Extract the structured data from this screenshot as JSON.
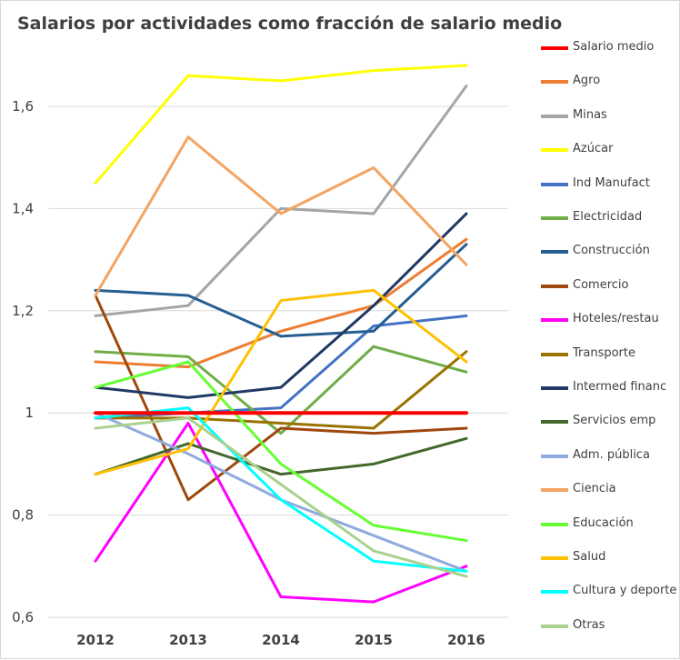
{
  "chart_data": {
    "type": "line",
    "title": "Salarios por actividades como fracción de salario medio",
    "xlabel": "",
    "ylabel": "",
    "x": [
      "2012",
      "2013",
      "2014",
      "2015",
      "2016"
    ],
    "ylim": [
      0.6,
      1.7
    ],
    "yticks": [
      0.6,
      0.8,
      1.0,
      1.2,
      1.4,
      1.6
    ],
    "ytick_labels": [
      "0,6",
      "0,8",
      "1",
      "1,2",
      "1,4",
      "1,6"
    ],
    "grid": "horizontal",
    "legend_position": "right",
    "series": [
      {
        "name": "Salario medio",
        "color": "#ff0000",
        "values": [
          1.0,
          1.0,
          1.0,
          1.0,
          1.0
        ]
      },
      {
        "name": "Agro",
        "color": "#ed7d31",
        "values": [
          1.1,
          1.09,
          1.16,
          1.21,
          1.34
        ]
      },
      {
        "name": "Minas",
        "color": "#a5a5a5",
        "values": [
          1.19,
          1.21,
          1.4,
          1.39,
          1.64
        ]
      },
      {
        "name": "Azúcar",
        "color": "#ffff00",
        "values": [
          1.45,
          1.66,
          1.65,
          1.67,
          1.68
        ]
      },
      {
        "name": "Ind Manufact",
        "color": "#4472c4",
        "values": [
          0.99,
          1.0,
          1.01,
          1.17,
          1.19
        ]
      },
      {
        "name": "Electricidad",
        "color": "#70ad47",
        "values": [
          1.12,
          1.11,
          0.96,
          1.13,
          1.08
        ]
      },
      {
        "name": "Construcción",
        "color": "#255e91",
        "values": [
          1.24,
          1.23,
          1.15,
          1.16,
          1.33
        ]
      },
      {
        "name": "Comercio",
        "color": "#9e480e",
        "values": [
          1.23,
          0.83,
          0.97,
          0.96,
          0.97
        ]
      },
      {
        "name": "Hoteles/restau",
        "color": "#ff00ff",
        "values": [
          0.71,
          0.98,
          0.64,
          0.63,
          0.7
        ]
      },
      {
        "name": "Transporte",
        "color": "#997300",
        "values": [
          0.99,
          0.99,
          0.98,
          0.97,
          1.12
        ]
      },
      {
        "name": "Intermed financ",
        "color": "#203864",
        "values": [
          1.05,
          1.03,
          1.05,
          1.21,
          1.39
        ]
      },
      {
        "name": "Servicios emp",
        "color": "#43682b",
        "values": [
          0.88,
          0.94,
          0.88,
          0.9,
          0.95
        ]
      },
      {
        "name": "Adm. pública",
        "color": "#8faadc",
        "values": [
          1.0,
          0.92,
          0.83,
          0.76,
          0.69
        ]
      },
      {
        "name": "Ciencia",
        "color": "#f4a460",
        "values": [
          1.23,
          1.54,
          1.39,
          1.48,
          1.29
        ]
      },
      {
        "name": "Educación",
        "color": "#66ff33",
        "values": [
          1.05,
          1.1,
          0.9,
          0.78,
          0.75
        ]
      },
      {
        "name": "Salud",
        "color": "#ffc000",
        "values": [
          0.88,
          0.93,
          1.22,
          1.24,
          1.1
        ]
      },
      {
        "name": "Cultura y deporte",
        "color": "#00ffff",
        "values": [
          0.99,
          1.01,
          0.83,
          0.71,
          0.69
        ]
      },
      {
        "name": "Otras",
        "color": "#a9d18e",
        "values": [
          0.97,
          0.99,
          0.86,
          0.73,
          0.68
        ]
      }
    ]
  }
}
